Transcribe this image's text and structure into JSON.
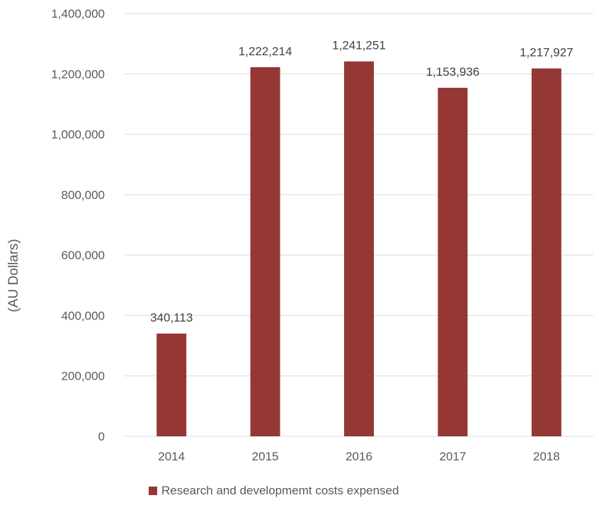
{
  "chart_data": {
    "type": "bar",
    "categories": [
      "2014",
      "2015",
      "2016",
      "2017",
      "2018"
    ],
    "series": [
      {
        "name": "Research and developmemt costs expensed",
        "values": [
          340113,
          1222214,
          1241251,
          1153936,
          1217927
        ],
        "data_labels": [
          "340,113",
          "1,222,214",
          "1,241,251",
          "1,153,936",
          "1,217,927"
        ]
      }
    ],
    "title": "",
    "xlabel": "",
    "ylabel": "(AU Dollars)",
    "ylim": [
      0,
      1400000
    ],
    "yticks": [
      0,
      200000,
      400000,
      600000,
      800000,
      1000000,
      1200000,
      1400000
    ],
    "ytick_labels": [
      "0",
      "200,000",
      "400,000",
      "600,000",
      "800,000",
      "1,000,000",
      "1,200,000",
      "1,400,000"
    ],
    "grid": true,
    "legend_position": "bottom",
    "colors": {
      "bar": "#953735",
      "grid": "#d9d9d9",
      "text": "#595959"
    }
  }
}
